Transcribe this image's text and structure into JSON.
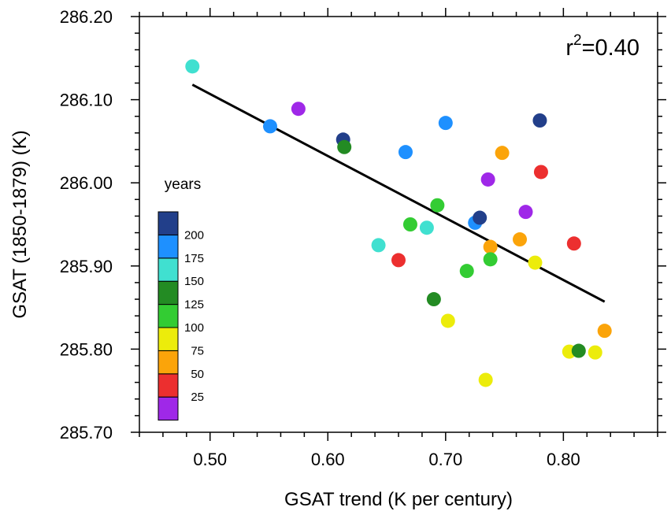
{
  "chart_data": {
    "type": "scatter",
    "xlabel": "GSAT trend (K per century)",
    "ylabel": "GSAT (1850-1879) (K)",
    "xlim": [
      0.44,
      0.88
    ],
    "ylim": [
      285.7,
      286.2
    ],
    "x_ticks": [
      0.5,
      0.6,
      0.7,
      0.8
    ],
    "x_tick_labels": [
      "0.50",
      "0.60",
      "0.70",
      "0.80"
    ],
    "y_ticks": [
      285.7,
      285.8,
      285.9,
      286.0,
      286.1,
      286.2
    ],
    "y_tick_labels": [
      "285.70",
      "285.80",
      "285.90",
      "286.00",
      "286.10",
      "286.20"
    ],
    "annotation": {
      "prefix": "r",
      "superscript": "2",
      "suffix": "=0.40"
    },
    "regression_line": {
      "x": [
        0.485,
        0.835
      ],
      "y": [
        286.118,
        285.857
      ]
    },
    "colorbar": {
      "title": "years",
      "bins": [
        {
          "color": "#9f28e8"
        },
        {
          "color": "#ec2f2f"
        },
        {
          "color": "#fba40a"
        },
        {
          "color": "#ecec0b"
        },
        {
          "color": "#33cc33"
        },
        {
          "color": "#238b23"
        },
        {
          "color": "#40e0d0"
        },
        {
          "color": "#1e90ff"
        },
        {
          "color": "#223f8a"
        }
      ],
      "tick_labels": [
        "25",
        "50",
        "75",
        "100",
        "125",
        "150",
        "175",
        "200"
      ]
    },
    "points": [
      {
        "x": 0.485,
        "y": 286.14,
        "bin": 6
      },
      {
        "x": 0.551,
        "y": 286.068,
        "bin": 7
      },
      {
        "x": 0.575,
        "y": 286.089,
        "bin": 0
      },
      {
        "x": 0.613,
        "y": 286.052,
        "bin": 8
      },
      {
        "x": 0.614,
        "y": 286.043,
        "bin": 5
      },
      {
        "x": 0.643,
        "y": 285.925,
        "bin": 6
      },
      {
        "x": 0.66,
        "y": 285.907,
        "bin": 1
      },
      {
        "x": 0.666,
        "y": 286.037,
        "bin": 7
      },
      {
        "x": 0.67,
        "y": 285.95,
        "bin": 4
      },
      {
        "x": 0.684,
        "y": 285.946,
        "bin": 6
      },
      {
        "x": 0.69,
        "y": 285.86,
        "bin": 5
      },
      {
        "x": 0.693,
        "y": 285.973,
        "bin": 4
      },
      {
        "x": 0.7,
        "y": 286.072,
        "bin": 7
      },
      {
        "x": 0.702,
        "y": 285.834,
        "bin": 3
      },
      {
        "x": 0.718,
        "y": 285.894,
        "bin": 4
      },
      {
        "x": 0.725,
        "y": 285.952,
        "bin": 7
      },
      {
        "x": 0.729,
        "y": 285.958,
        "bin": 8
      },
      {
        "x": 0.734,
        "y": 285.763,
        "bin": 3
      },
      {
        "x": 0.736,
        "y": 286.004,
        "bin": 0
      },
      {
        "x": 0.738,
        "y": 285.923,
        "bin": 2
      },
      {
        "x": 0.738,
        "y": 285.908,
        "bin": 4
      },
      {
        "x": 0.748,
        "y": 286.036,
        "bin": 2
      },
      {
        "x": 0.763,
        "y": 285.932,
        "bin": 2
      },
      {
        "x": 0.768,
        "y": 285.965,
        "bin": 0
      },
      {
        "x": 0.776,
        "y": 285.904,
        "bin": 3
      },
      {
        "x": 0.78,
        "y": 286.075,
        "bin": 8
      },
      {
        "x": 0.781,
        "y": 286.013,
        "bin": 1
      },
      {
        "x": 0.805,
        "y": 285.797,
        "bin": 3
      },
      {
        "x": 0.809,
        "y": 285.927,
        "bin": 1
      },
      {
        "x": 0.813,
        "y": 285.798,
        "bin": 5
      },
      {
        "x": 0.827,
        "y": 285.796,
        "bin": 3
      },
      {
        "x": 0.835,
        "y": 285.822,
        "bin": 2
      }
    ]
  }
}
